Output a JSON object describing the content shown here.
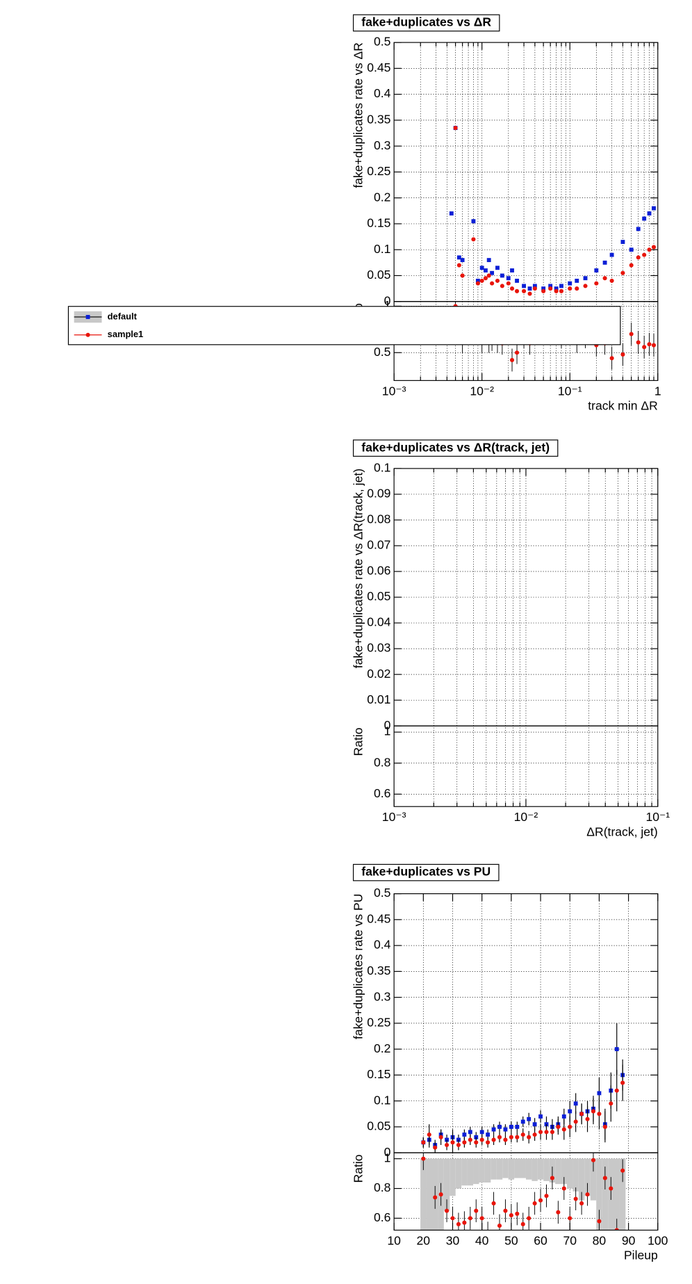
{
  "chart_data": [
    {
      "type": "scatter",
      "title": "fake+duplicates vs  ΔR",
      "ylabel": "fake+duplicates rate vs  ΔR",
      "xlabel": "track min  ΔR",
      "ratio_label": "Ratio",
      "xlog": true,
      "xlim": [
        0.001,
        1
      ],
      "xticks": [
        {
          "value": 0.001,
          "label": "10⁻³"
        },
        {
          "value": 0.01,
          "label": "10⁻²"
        },
        {
          "value": 0.1,
          "label": "10⁻¹"
        },
        1
      ],
      "xminorticks": [
        0.002,
        0.003,
        0.004,
        0.005,
        0.006,
        0.007,
        0.008,
        0.009,
        0.02,
        0.03,
        0.04,
        0.05,
        0.06,
        0.07,
        0.08,
        0.09,
        0.2,
        0.3,
        0.4,
        0.5,
        0.6,
        0.7,
        0.8,
        0.9
      ],
      "ylim": [
        0,
        0.5
      ],
      "yticks": [
        0,
        0.05,
        0.1,
        0.15,
        0.2,
        0.25,
        0.3,
        0.35,
        0.4,
        0.45,
        0.5
      ],
      "ratio_ylim": [
        0.2,
        1.05
      ],
      "ratio_yticks": [
        0.5,
        1
      ],
      "grid": true,
      "legend": "left",
      "x": [
        0.0045,
        0.005,
        0.0055,
        0.006,
        0.008,
        0.009,
        0.01,
        0.011,
        0.012,
        0.013,
        0.015,
        0.017,
        0.02,
        0.022,
        0.025,
        0.03,
        0.035,
        0.04,
        0.05,
        0.06,
        0.07,
        0.08,
        0.1,
        0.12,
        0.15,
        0.2,
        0.25,
        0.3,
        0.4,
        0.5,
        0.6,
        0.7,
        0.8,
        0.9
      ],
      "series": [
        {
          "name": "default",
          "color": "#0b1fd6",
          "marker": "square",
          "band_color": "#c8c8c8",
          "values": [
            0.17,
            0.335,
            0.085,
            0.08,
            0.155,
            0.04,
            0.065,
            0.06,
            0.08,
            0.055,
            0.065,
            0.05,
            0.045,
            0.06,
            0.04,
            0.03,
            0.025,
            0.03,
            0.025,
            0.03,
            0.025,
            0.03,
            0.035,
            0.04,
            0.045,
            0.06,
            0.075,
            0.09,
            0.115,
            0.1,
            0.14,
            0.16,
            0.17,
            0.18
          ]
        },
        {
          "name": "sample1",
          "color": "#e8150b",
          "marker": "circle",
          "values": [
            null,
            0.335,
            0.07,
            0.05,
            0.12,
            0.035,
            0.04,
            0.045,
            0.05,
            0.035,
            0.04,
            0.03,
            0.035,
            0.025,
            0.02,
            0.02,
            0.015,
            0.025,
            0.02,
            0.025,
            0.02,
            0.02,
            0.025,
            0.025,
            0.03,
            0.035,
            0.045,
            0.04,
            0.055,
            0.07,
            0.085,
            0.09,
            0.1,
            0.105
          ],
          "ratio_values": [
            null,
            1,
            0.82,
            0.62,
            0.77,
            0.87,
            0.62,
            0.75,
            0.62,
            0.64,
            0.62,
            0.6,
            0.78,
            0.42,
            0.5,
            0.67,
            0.6,
            0.83,
            0.8,
            0.83,
            0.8,
            0.67,
            0.71,
            0.62,
            0.67,
            0.58,
            0.6,
            0.44,
            0.48,
            0.7,
            0.61,
            0.56,
            0.59,
            0.58
          ]
        }
      ]
    },
    {
      "type": "scatter",
      "title": "fake+duplicates vs  ΔR(track, jet)",
      "ylabel": "fake+duplicates rate vs  ΔR(track, jet)",
      "xlabel": "ΔR(track, jet)",
      "ratio_label": "Ratio",
      "xlog": true,
      "xlim": [
        0.001,
        0.1
      ],
      "xticks": [
        {
          "value": 0.001,
          "label": "10⁻³"
        },
        {
          "value": 0.01,
          "label": "10⁻²"
        },
        {
          "value": 0.1,
          "label": "10⁻¹"
        }
      ],
      "xminorticks": [
        0.002,
        0.003,
        0.004,
        0.005,
        0.006,
        0.007,
        0.008,
        0.009,
        0.02,
        0.03,
        0.04,
        0.05,
        0.06,
        0.07,
        0.08,
        0.09
      ],
      "ylim": [
        0,
        0.1
      ],
      "yticks": [
        0,
        0.01,
        0.02,
        0.03,
        0.04,
        0.05,
        0.06,
        0.07,
        0.08,
        0.09,
        0.1
      ],
      "ratio_ylim": [
        0.52,
        1.04
      ],
      "ratio_yticks": [
        0.6,
        0.8,
        1
      ],
      "grid": true
    },
    {
      "type": "scatter",
      "title": "fake+duplicates vs PU",
      "ylabel": "fake+duplicates rate vs PU",
      "xlabel": "Pileup",
      "ratio_label": "Ratio",
      "xlog": false,
      "xlim": [
        10,
        100
      ],
      "xticks": [
        10,
        20,
        30,
        40,
        50,
        60,
        70,
        80,
        90,
        100
      ],
      "ylim": [
        0,
        0.5
      ],
      "yticks": [
        0,
        0.05,
        0.1,
        0.15,
        0.2,
        0.25,
        0.3,
        0.35,
        0.4,
        0.45,
        0.5
      ],
      "ratio_ylim": [
        0.52,
        1.04
      ],
      "ratio_yticks": [
        0.6,
        0.8,
        1
      ],
      "grid": true,
      "x": [
        20,
        22,
        24,
        26,
        28,
        30,
        32,
        34,
        36,
        38,
        40,
        42,
        44,
        46,
        48,
        50,
        52,
        54,
        56,
        58,
        60,
        62,
        64,
        66,
        68,
        70,
        72,
        74,
        76,
        78,
        80,
        82,
        84,
        86,
        88
      ],
      "ratio_band_low": [
        0.52,
        0.52,
        0.52,
        0.52,
        0.65,
        0.75,
        0.8,
        0.82,
        0.82,
        0.83,
        0.84,
        0.84,
        0.86,
        0.86,
        0.87,
        0.86,
        0.87,
        0.87,
        0.86,
        0.85,
        0.86,
        0.85,
        0.84,
        0.83,
        0.83,
        0.8,
        0.78,
        0.72,
        0.75,
        0.72,
        0.52,
        0.52,
        0.52,
        0.52,
        0.52
      ],
      "series": [
        {
          "name": "default",
          "color": "#0b1fd6",
          "marker": "square",
          "band_color": "#c8c8c8",
          "values": [
            0.02,
            0.025,
            0.015,
            0.035,
            0.025,
            0.03,
            0.025,
            0.035,
            0.04,
            0.03,
            0.04,
            0.035,
            0.045,
            0.05,
            0.045,
            0.05,
            0.05,
            0.06,
            0.065,
            0.055,
            0.07,
            0.055,
            0.05,
            0.055,
            0.07,
            0.08,
            0.095,
            0.075,
            0.08,
            0.085,
            0.115,
            0.055,
            0.12,
            0.2,
            0.15
          ],
          "errors": [
            0.01,
            0.015,
            0.01,
            0.01,
            0.01,
            0.01,
            0.01,
            0.01,
            0.01,
            0.01,
            0.01,
            0.01,
            0.01,
            0.01,
            0.01,
            0.01,
            0.01,
            0.01,
            0.012,
            0.012,
            0.012,
            0.015,
            0.015,
            0.015,
            0.015,
            0.02,
            0.02,
            0.02,
            0.02,
            0.025,
            0.03,
            0.03,
            0.035,
            0.05,
            0.03
          ]
        },
        {
          "name": "sample1",
          "color": "#e8150b",
          "marker": "circle",
          "values": [
            0.02,
            0.035,
            0.01,
            0.03,
            0.015,
            0.02,
            0.015,
            0.02,
            0.025,
            0.02,
            0.025,
            0.02,
            0.025,
            0.03,
            0.025,
            0.03,
            0.03,
            0.035,
            0.03,
            0.035,
            0.04,
            0.04,
            0.04,
            0.05,
            0.045,
            0.05,
            0.06,
            0.075,
            0.065,
            0.08,
            0.075,
            0.05,
            0.095,
            0.12,
            0.135
          ],
          "errors": [
            0.01,
            0.02,
            0.01,
            0.015,
            0.01,
            0.025,
            0.01,
            0.01,
            0.01,
            0.01,
            0.01,
            0.01,
            0.01,
            0.01,
            0.01,
            0.01,
            0.01,
            0.012,
            0.012,
            0.012,
            0.015,
            0.015,
            0.015,
            0.015,
            0.02,
            0.02,
            0.02,
            0.02,
            0.025,
            0.025,
            0.03,
            0.03,
            0.035,
            0.04,
            0.035
          ],
          "ratio_values": [
            1,
            1.2,
            0.74,
            0.76,
            0.65,
            0.6,
            0.56,
            0.57,
            0.6,
            0.65,
            0.6,
            0.5,
            0.7,
            0.55,
            0.65,
            0.62,
            0.63,
            0.56,
            0.6,
            0.7,
            0.72,
            0.75,
            0.87,
            0.64,
            0.8,
            0.6,
            0.73,
            0.7,
            0.76,
            0.99,
            0.58,
            0.87,
            0.8,
            0.52,
            0.92
          ]
        }
      ]
    }
  ]
}
